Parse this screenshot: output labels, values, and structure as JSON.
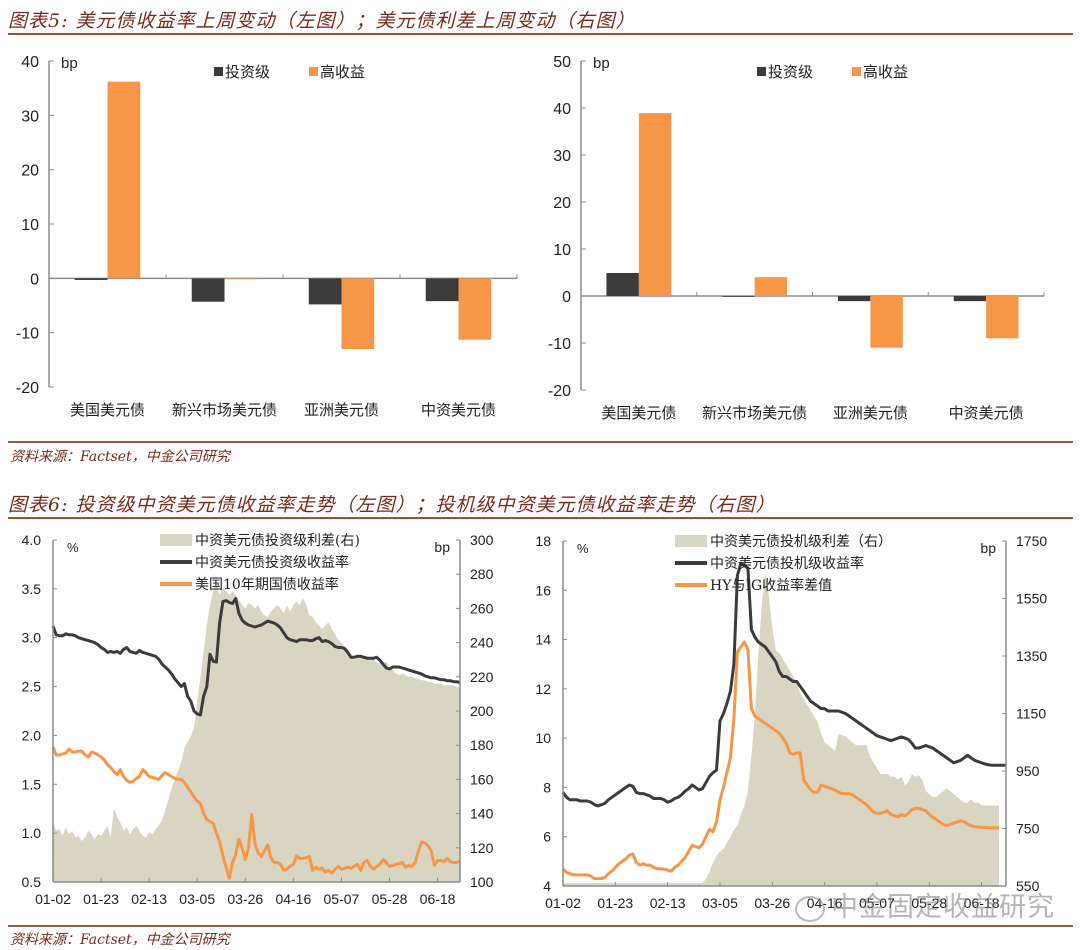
{
  "figure5": {
    "title": "图表5: 美元债收益率上周变动（左图）；美元债利差上周变动（右图）",
    "source": "资料来源：Factset，中金公司研究"
  },
  "figure6": {
    "title": "图表6: 投资级中资美元债收益率走势（左图）；投机级中资美元债收益率走势（右图）",
    "source": "资料来源：Factset，中金公司研究"
  },
  "watermark": "中金固定收益研究",
  "colors": {
    "ig": "#3b3b3b",
    "hy": "#f79646",
    "spread_fill": "#d9d5c3",
    "axis": "#8c8c8c",
    "title": "#7a2a1c",
    "rule": "#a0522d"
  },
  "chart_data": [
    {
      "type": "bar",
      "title": "美元债收益率上周变动",
      "ylabel": "bp",
      "ylim": [
        -20,
        40
      ],
      "yticks": [
        "40",
        "30",
        "20",
        "10",
        "0",
        "-10",
        "-20"
      ],
      "ytick_values": [
        40,
        30,
        20,
        10,
        0,
        -10,
        -20
      ],
      "categories": [
        "美国美元债",
        "新兴市场美元债",
        "亚洲美元债",
        "中资美元债"
      ],
      "legend_position": "top",
      "series": [
        {
          "name": "投资级",
          "color": "#3b3b3b",
          "values": [
            -0.3,
            -4.3,
            -4.8,
            -4.2
          ]
        },
        {
          "name": "高收益",
          "color": "#f79646",
          "values": [
            36.2,
            -0.1,
            -13.0,
            -11.3
          ]
        }
      ]
    },
    {
      "type": "bar",
      "title": "美元债利差上周变动",
      "ylabel": "bp",
      "ylim": [
        -20,
        50
      ],
      "yticks": [
        "50",
        "40",
        "30",
        "20",
        "10",
        "0",
        "-10",
        "-20"
      ],
      "ytick_values": [
        50,
        40,
        30,
        20,
        10,
        0,
        -10,
        -20
      ],
      "categories": [
        "美国美元债",
        "新兴市场美元债",
        "亚洲美元债",
        "中资美元债"
      ],
      "legend_position": "top",
      "series": [
        {
          "name": "投资级",
          "color": "#3b3b3b",
          "values": [
            4.9,
            0.0,
            -1.1,
            -1.1
          ]
        },
        {
          "name": "高收益",
          "color": "#f79646",
          "values": [
            38.9,
            4.0,
            -11.0,
            -9.0
          ]
        }
      ]
    },
    {
      "type": "line",
      "title": "投资级中资美元债收益率走势",
      "ylabel_left": "%",
      "ylabel_right": "bp",
      "ylim_left": [
        0.5,
        4.0
      ],
      "ylim_right": [
        100,
        300
      ],
      "yticks_left": [
        "4.0",
        "3.5",
        "3.0",
        "2.5",
        "2.0",
        "1.5",
        "1.0",
        "0.5"
      ],
      "ytick_values_left": [
        4.0,
        3.5,
        3.0,
        2.5,
        2.0,
        1.5,
        1.0,
        0.5
      ],
      "yticks_right": [
        "300",
        "280",
        "260",
        "240",
        "220",
        "200",
        "180",
        "160",
        "140",
        "120",
        "100"
      ],
      "ytick_values_right": [
        300,
        280,
        260,
        240,
        220,
        200,
        180,
        160,
        140,
        120,
        100
      ],
      "xticks": [
        "01-02",
        "01-23",
        "02-13",
        "03-05",
        "03-26",
        "04-16",
        "05-07",
        "05-28",
        "06-18"
      ],
      "x_days": 128,
      "legend_position": "top-center",
      "series": [
        {
          "name": "中资美元债投资级利差(右)",
          "kind": "area",
          "axis": "right",
          "color": "#d9d5c3",
          "values": [
            134,
            130,
            131,
            127,
            132,
            128,
            130,
            126,
            127,
            124,
            126,
            130,
            128,
            125,
            128,
            127,
            130,
            133,
            126,
            143,
            138,
            135,
            130,
            132,
            128,
            131,
            133,
            130,
            127,
            126,
            129,
            128,
            131,
            133,
            136,
            142,
            148,
            155,
            160,
            165,
            170,
            178,
            182,
            185,
            190,
            205,
            220,
            235,
            250,
            262,
            270,
            275,
            268,
            272,
            270,
            268,
            270,
            268,
            265,
            262,
            260,
            263,
            262,
            260,
            262,
            258,
            256,
            255,
            258,
            260,
            262,
            260,
            257,
            262,
            258,
            262,
            264,
            262,
            266,
            262,
            256,
            255,
            252,
            250,
            248,
            250,
            252,
            248,
            245,
            242,
            240,
            238,
            235,
            232,
            230,
            231,
            232,
            232,
            232,
            230,
            231,
            228,
            228,
            228,
            229,
            226,
            224,
            222,
            221,
            222,
            221,
            220,
            220,
            219,
            219,
            218,
            218,
            217,
            217,
            216,
            216,
            216,
            215,
            215,
            215,
            215,
            214,
            214
          ]
        },
        {
          "name": "中资美元债投资级收益率",
          "kind": "line",
          "axis": "left",
          "color": "#3b3b3b",
          "values": [
            3.12,
            3.03,
            3.02,
            3.02,
            3.04,
            3.03,
            3.03,
            3.02,
            3.0,
            2.99,
            2.98,
            2.97,
            2.96,
            2.95,
            2.93,
            2.9,
            2.88,
            2.85,
            2.86,
            2.85,
            2.86,
            2.84,
            2.88,
            2.9,
            2.86,
            2.85,
            2.84,
            2.87,
            2.85,
            2.84,
            2.83,
            2.82,
            2.81,
            2.78,
            2.73,
            2.7,
            2.67,
            2.63,
            2.58,
            2.54,
            2.5,
            2.53,
            2.4,
            2.35,
            2.25,
            2.22,
            2.21,
            2.4,
            2.5,
            2.83,
            2.76,
            2.75,
            3.15,
            3.37,
            3.38,
            3.36,
            3.35,
            3.4,
            3.25,
            3.18,
            3.15,
            3.13,
            3.12,
            3.11,
            3.12,
            3.13,
            3.15,
            3.17,
            3.16,
            3.15,
            3.13,
            3.1,
            3.05,
            3.0,
            2.98,
            2.97,
            2.96,
            2.98,
            2.98,
            2.98,
            2.97,
            2.97,
            2.99,
            3.0,
            2.96,
            2.97,
            2.96,
            2.94,
            2.91,
            2.9,
            2.9,
            2.89,
            2.85,
            2.8,
            2.8,
            2.81,
            2.81,
            2.8,
            2.79,
            2.79,
            2.79,
            2.8,
            2.77,
            2.73,
            2.69,
            2.68,
            2.7,
            2.7,
            2.7,
            2.69,
            2.68,
            2.67,
            2.66,
            2.65,
            2.64,
            2.63,
            2.61,
            2.6,
            2.59,
            2.59,
            2.58,
            2.57,
            2.57,
            2.56,
            2.56,
            2.55,
            2.55,
            2.54
          ]
        },
        {
          "name": "美国10年期国债收益率",
          "kind": "line",
          "axis": "left",
          "color": "#f79646",
          "values": [
            1.88,
            1.8,
            1.8,
            1.81,
            1.82,
            1.86,
            1.83,
            1.83,
            1.84,
            1.84,
            1.8,
            1.78,
            1.83,
            1.82,
            1.8,
            1.78,
            1.75,
            1.7,
            1.67,
            1.63,
            1.6,
            1.65,
            1.58,
            1.54,
            1.52,
            1.53,
            1.56,
            1.58,
            1.65,
            1.62,
            1.58,
            1.57,
            1.56,
            1.55,
            1.59,
            1.62,
            1.6,
            1.58,
            1.56,
            1.55,
            1.55,
            1.52,
            1.47,
            1.42,
            1.37,
            1.33,
            1.3,
            1.2,
            1.14,
            1.12,
            1.1,
            1.0,
            0.91,
            0.77,
            0.65,
            0.54,
            0.7,
            0.78,
            0.94,
            0.85,
            0.73,
            0.85,
            1.19,
            0.9,
            0.8,
            0.76,
            0.82,
            0.88,
            0.75,
            0.7,
            0.7,
            0.68,
            0.62,
            0.63,
            0.66,
            0.68,
            0.77,
            0.74,
            0.74,
            0.75,
            0.76,
            0.62,
            0.65,
            0.63,
            0.64,
            0.6,
            0.62,
            0.59,
            0.63,
            0.66,
            0.63,
            0.64,
            0.65,
            0.64,
            0.66,
            0.68,
            0.62,
            0.7,
            0.72,
            0.66,
            0.63,
            0.66,
            0.68,
            0.73,
            0.7,
            0.66,
            0.67,
            0.68,
            0.69,
            0.7,
            0.65,
            0.67,
            0.66,
            0.7,
            0.81,
            0.91,
            0.9,
            0.87,
            0.82,
            0.67,
            0.72,
            0.72,
            0.71,
            0.74,
            0.71,
            0.7,
            0.7,
            0.72
          ]
        }
      ]
    },
    {
      "type": "line",
      "title": "投机级中资美元债收益率走势",
      "ylabel_left": "%",
      "ylabel_right": "bp",
      "ylim_left": [
        4,
        18
      ],
      "ylim_right": [
        550,
        1750
      ],
      "yticks_left": [
        "18",
        "16",
        "14",
        "12",
        "10",
        "8",
        "6",
        "4"
      ],
      "ytick_values_left": [
        18,
        16,
        14,
        12,
        10,
        8,
        6,
        4
      ],
      "yticks_right": [
        "1750",
        "1550",
        "1350",
        "1150",
        "950",
        "750",
        "550"
      ],
      "ytick_values_right": [
        1750,
        1550,
        1350,
        1150,
        950,
        750,
        550
      ],
      "xticks": [
        "01-02",
        "01-23",
        "02-13",
        "03-05",
        "03-26",
        "04-16",
        "05-07",
        "05-28",
        "06-18"
      ],
      "x_days": 128,
      "legend_position": "top-center",
      "series": [
        {
          "name": "中资美元债投机级利差（右）",
          "kind": "area",
          "axis": "right",
          "color": "#d9d5c3",
          "values": [
            560,
            560,
            560,
            560,
            560,
            560,
            560,
            560,
            560,
            560,
            560,
            560,
            560,
            560,
            560,
            560,
            560,
            560,
            560,
            560,
            560,
            560,
            560,
            560,
            560,
            560,
            560,
            560,
            560,
            560,
            560,
            560,
            560,
            560,
            560,
            560,
            560,
            560,
            560,
            560,
            560,
            575,
            600,
            630,
            655,
            670,
            680,
            700,
            720,
            745,
            760,
            800,
            830,
            880,
            1000,
            1150,
            1350,
            1530,
            1640,
            1560,
            1450,
            1370,
            1360,
            1340,
            1320,
            1300,
            1280,
            1260,
            1220,
            1200,
            1180,
            1160,
            1140,
            1120,
            1080,
            1050,
            1040,
            1030,
            1020,
            1080,
            1075,
            1070,
            1060,
            1050,
            1040,
            1040,
            1040,
            1040,
            1000,
            980,
            960,
            940,
            940,
            940,
            930,
            930,
            920,
            930,
            900,
            910,
            940,
            930,
            935,
            920,
            880,
            870,
            860,
            860,
            870,
            880,
            890,
            880,
            870,
            860,
            850,
            840,
            840,
            850,
            840,
            840,
            830,
            830,
            830,
            830,
            830,
            830
          ]
        },
        {
          "name": "中资美元债投机级收益率",
          "kind": "line",
          "axis": "left",
          "color": "#3b3b3b",
          "values": [
            7.8,
            7.6,
            7.5,
            7.5,
            7.5,
            7.45,
            7.45,
            7.45,
            7.4,
            7.3,
            7.25,
            7.3,
            7.35,
            7.5,
            7.6,
            7.7,
            7.8,
            7.9,
            8.0,
            8.1,
            8.05,
            7.8,
            7.75,
            7.75,
            7.7,
            7.65,
            7.55,
            7.55,
            7.55,
            7.5,
            7.4,
            7.45,
            7.55,
            7.6,
            7.7,
            7.85,
            7.95,
            8.1,
            8.0,
            7.9,
            7.95,
            8.2,
            8.45,
            8.6,
            8.7,
            10.7,
            11.0,
            11.4,
            11.9,
            13.0,
            16.6,
            17.1,
            17.0,
            16.9,
            14.4,
            14.1,
            13.9,
            13.8,
            13.7,
            13.5,
            13.3,
            13.1,
            12.7,
            12.5,
            12.5,
            12.4,
            12.3,
            12.3,
            12.1,
            11.9,
            11.7,
            11.5,
            11.4,
            11.3,
            11.2,
            11.2,
            11.1,
            11.1,
            11.1,
            11.1,
            11.05,
            11.0,
            10.9,
            10.8,
            10.7,
            10.6,
            10.5,
            10.4,
            10.3,
            10.2,
            10.1,
            10.05,
            10.0,
            9.95,
            9.9,
            9.95,
            10.0,
            10.05,
            10.0,
            9.95,
            9.8,
            9.6,
            9.6,
            9.65,
            9.7,
            9.65,
            9.6,
            9.5,
            9.4,
            9.3,
            9.2,
            9.1,
            9.0,
            9.05,
            9.1,
            9.2,
            9.3,
            9.2,
            9.1,
            9.05,
            9.0,
            8.95,
            8.92,
            8.9,
            8.9,
            8.9,
            8.9,
            8.9
          ]
        },
        {
          "name": "HY与IG收益率差值",
          "kind": "line",
          "axis": "left",
          "color": "#f79646",
          "values": [
            4.7,
            4.55,
            4.5,
            4.45,
            4.45,
            4.45,
            4.45,
            4.45,
            4.4,
            4.3,
            4.3,
            4.3,
            4.35,
            4.5,
            4.6,
            4.75,
            4.9,
            5.0,
            5.1,
            5.25,
            5.3,
            4.95,
            4.85,
            4.9,
            4.85,
            4.85,
            4.75,
            4.7,
            4.7,
            4.68,
            4.65,
            4.6,
            4.75,
            4.85,
            5.0,
            5.15,
            5.4,
            5.65,
            5.6,
            5.55,
            5.7,
            6.0,
            6.3,
            6.2,
            6.6,
            7.5,
            8.0,
            8.6,
            9.2,
            10.8,
            13.5,
            13.7,
            13.9,
            13.6,
            11.2,
            10.9,
            10.8,
            10.7,
            10.6,
            10.5,
            10.4,
            10.3,
            10.2,
            10.0,
            9.8,
            9.4,
            9.35,
            9.4,
            9.4,
            8.3,
            8.1,
            7.9,
            7.8,
            7.8,
            8.1,
            8.05,
            8.0,
            7.95,
            7.9,
            7.8,
            7.75,
            7.75,
            7.75,
            7.7,
            7.6,
            7.5,
            7.4,
            7.3,
            7.15,
            7.0,
            6.95,
            6.95,
            7.0,
            7.05,
            6.9,
            6.85,
            6.8,
            6.9,
            6.85,
            6.95,
            7.1,
            7.15,
            7.15,
            7.1,
            7.05,
            6.9,
            6.8,
            6.7,
            6.6,
            6.5,
            6.45,
            6.5,
            6.55,
            6.6,
            6.65,
            6.6,
            6.5,
            6.45,
            6.4,
            6.4,
            6.38,
            6.38,
            6.36,
            6.36,
            6.36,
            6.36
          ]
        }
      ]
    }
  ]
}
